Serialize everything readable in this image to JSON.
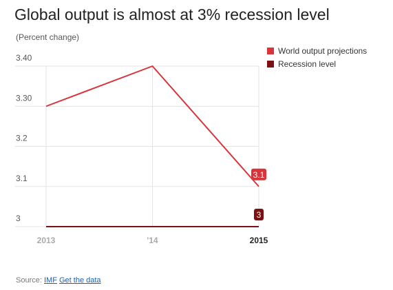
{
  "title": "Global output is almost at 3% recession level",
  "subtitle": "(Percent change)",
  "legend": [
    {
      "label": "World output projections",
      "color": "#d9343b"
    },
    {
      "label": "Recession level",
      "color": "#7b1113"
    }
  ],
  "source": {
    "prefix": "Source:",
    "link1": "IMF",
    "link2": "Get the data"
  },
  "chart_data": {
    "type": "line",
    "categories": [
      "2013",
      "'14",
      "2015"
    ],
    "yticks": [
      "3",
      "3.1",
      "3.2",
      "3.30",
      "3.40"
    ],
    "ylim": [
      3.0,
      3.4
    ],
    "grid": true,
    "legend_position": "top-right",
    "series": [
      {
        "name": "World output projections",
        "color": "#d9343b",
        "values": [
          3.3,
          3.4,
          3.1
        ],
        "end_label": "3.1"
      },
      {
        "name": "Recession level",
        "color": "#7b1113",
        "values": [
          3.0,
          3.0,
          3.0
        ],
        "end_label": "3"
      }
    ]
  }
}
